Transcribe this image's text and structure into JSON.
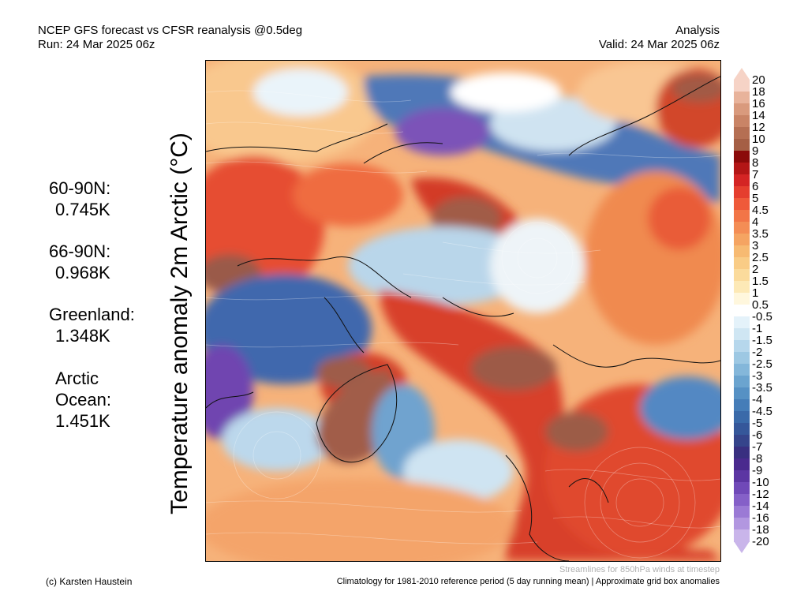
{
  "header": {
    "title": "NCEP GFS forecast vs CFSR reanalysis @0.5deg",
    "run": "Run: 24 Mar 2025 06z",
    "type": "Analysis",
    "valid": "Valid: 24 Mar 2025 06z"
  },
  "stats": [
    {
      "label": "60-90N:",
      "value": "0.745K"
    },
    {
      "label": "66-90N:",
      "value": "0.968K"
    },
    {
      "label": "Greenland:",
      "value": "1.348K"
    },
    {
      "label": "Arctic",
      "label2": "Ocean:",
      "value": "1.451K"
    }
  ],
  "vertical_label": "Temperature anomaly 2m Arctic (°C)",
  "colorbar": {
    "ticks": [
      "20",
      "18",
      "16",
      "14",
      "12",
      "10",
      "9",
      "8",
      "7",
      "6",
      "5",
      "4.5",
      "4",
      "3.5",
      "3",
      "2.5",
      "2",
      "1.5",
      "1",
      "0.5",
      "-0.5",
      "-1",
      "-1.5",
      "-2",
      "-2.5",
      "-3",
      "-3.5",
      "-4",
      "-4.5",
      "-5",
      "-6",
      "-7",
      "-8",
      "-9",
      "-10",
      "-12",
      "-14",
      "-16",
      "-18",
      "-20"
    ],
    "colors": [
      "#f6d3c6",
      "#e8b39b",
      "#d99a7d",
      "#c98466",
      "#b56f53",
      "#a55f45",
      "#8b0a0a",
      "#b31616",
      "#d42424",
      "#e53e2e",
      "#ef5a3a",
      "#f27547",
      "#f48d55",
      "#f5a462",
      "#f7ba72",
      "#f9cc86",
      "#fbdb9c",
      "#fde9b6",
      "#fff7dd",
      "#ffffff",
      "#e4f2fa",
      "#cfe6f3",
      "#b6d7ec",
      "#9dc8e3",
      "#84b7da",
      "#6ba4cf",
      "#5691c4",
      "#457db8",
      "#3a6aa9",
      "#35579a",
      "#35448b",
      "#392f80",
      "#4a2a8e",
      "#5c36a3",
      "#7049b8",
      "#8560c8",
      "#9b7ad5",
      "#b297e0",
      "#c9b5ea"
    ]
  },
  "footer": {
    "credit": "(c) Karsten Haustein",
    "streamlines_note": "Streamlines for 850hPa winds at timestep",
    "climatology_note": "Climatology for 1981-2010 reference period (5 day running mean) | Approximate grid box anomalies"
  }
}
